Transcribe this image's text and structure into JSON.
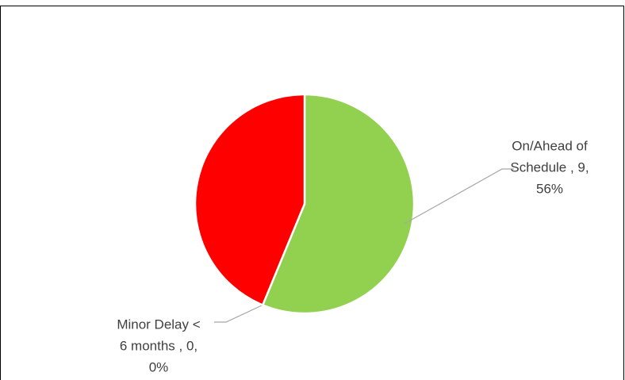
{
  "chart_data": {
    "type": "pie",
    "values": [
      9,
      0,
      7
    ],
    "colors": [
      "#92d050",
      "#ffc000",
      "#ff0000"
    ],
    "value_labels": [
      [
        "On/Ahead of",
        "Schedule , 9,",
        "56%"
      ],
      [
        "Minor Delay <",
        "6 months , 0,",
        "0%"
      ],
      null
    ]
  }
}
